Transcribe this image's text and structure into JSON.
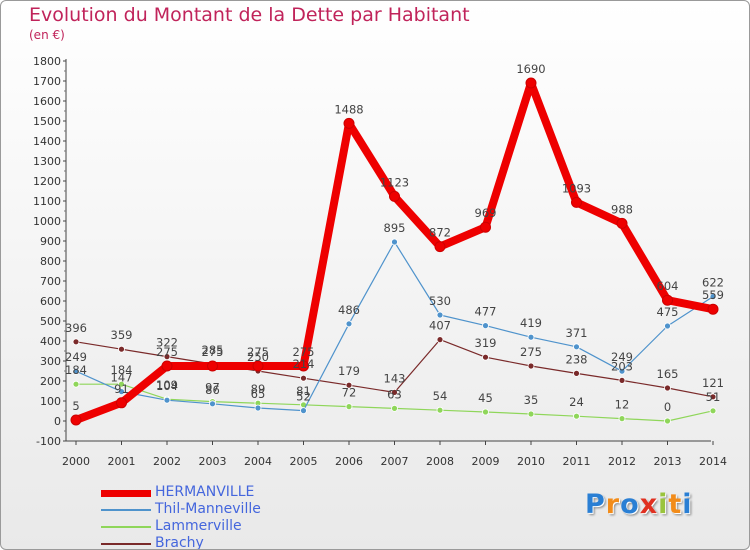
{
  "title": "Evolution du Montant de la Dette par Habitant",
  "subtitle": "(en €)",
  "logo": {
    "letters": [
      "P",
      "r",
      "o",
      "x",
      "i",
      "t",
      "i"
    ],
    "colors": [
      "#2a7fd4",
      "#f28c1a",
      "#2a7fd4",
      "#e03020",
      "#9ac43c",
      "#f28c1a",
      "#2a7fd4"
    ]
  },
  "chart_data": {
    "type": "line",
    "title": "Evolution du Montant de la Dette par Habitant",
    "ylabel": "(en €)",
    "x": [
      "2000",
      "2001",
      "2002",
      "2003",
      "2004",
      "2005",
      "2006",
      "2007",
      "2008",
      "2009",
      "2010",
      "2011",
      "2012",
      "2013",
      "2014"
    ],
    "ylim": [
      -100,
      1800
    ],
    "yticks": [
      -100,
      0,
      100,
      200,
      300,
      400,
      500,
      600,
      700,
      800,
      900,
      1000,
      1100,
      1200,
      1300,
      1400,
      1500,
      1600,
      1700,
      1800
    ],
    "grid": false,
    "legend": "bottom-left",
    "series": [
      {
        "name": "HERMANVILLE",
        "color": "#ee0000",
        "values": [
          5,
          91,
          275,
          275,
          275,
          275,
          1488,
          1123,
          872,
          969,
          1690,
          1093,
          988,
          604,
          559
        ]
      },
      {
        "name": "Thil-Manneville",
        "color": "#4f93cc",
        "values": [
          249,
          147,
          104,
          86,
          65,
          52,
          486,
          895,
          530,
          477,
          419,
          371,
          249,
          475,
          622
        ]
      },
      {
        "name": "Lammerville",
        "color": "#8fd65a",
        "values": [
          184,
          184,
          109,
          97,
          89,
          81,
          72,
          63,
          54,
          45,
          35,
          24,
          12,
          0,
          51
        ]
      },
      {
        "name": "Brachy",
        "color": "#7a2a2a",
        "values": [
          396,
          359,
          322,
          285,
          250,
          214,
          179,
          143,
          407,
          319,
          275,
          238,
          203,
          165,
          121
        ]
      }
    ]
  }
}
